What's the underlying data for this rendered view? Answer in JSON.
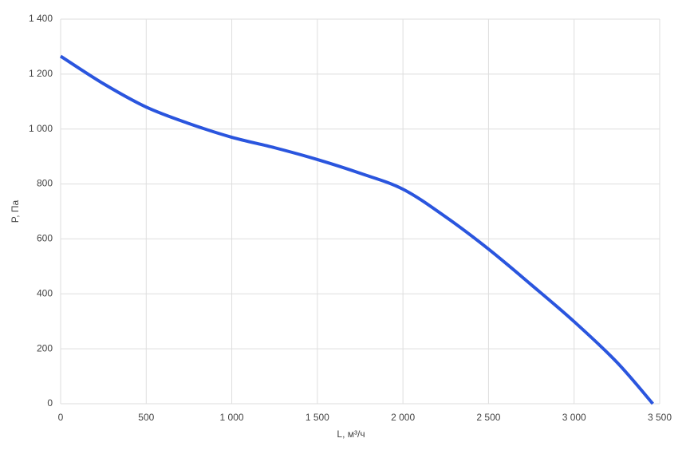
{
  "chart_data": {
    "type": "line",
    "x_label": "L, м³/ч",
    "y_label": "P, Па",
    "x": [
      0,
      250,
      500,
      750,
      1000,
      1250,
      1500,
      1750,
      2000,
      2250,
      2500,
      2750,
      3000,
      3250,
      3460
    ],
    "series": [
      {
        "name": "P",
        "color": "#2a55de",
        "values": [
          1265,
          1165,
          1080,
          1020,
          970,
          932,
          889,
          839,
          781,
          680,
          563,
          433,
          299,
          151,
          0
        ]
      }
    ],
    "xlim": [
      0,
      3500
    ],
    "xticks": [
      0,
      500,
      {
        "value": 1000,
        "label": "1 000"
      },
      {
        "value": 1500,
        "label": "1 500"
      },
      {
        "value": 2000,
        "label": "2 000"
      },
      {
        "value": 2500,
        "label": "2 500"
      },
      {
        "value": 3000,
        "label": "3 000"
      },
      {
        "value": 3500,
        "label": "3 500"
      }
    ],
    "ylim": [
      0,
      1400
    ],
    "yticks": [
      0,
      200,
      400,
      600,
      800,
      {
        "value": 1000,
        "label": "1 000"
      },
      {
        "value": 1200,
        "label": "1 200"
      },
      {
        "value": 1400,
        "label": "1 400"
      }
    ],
    "grid": true
  }
}
